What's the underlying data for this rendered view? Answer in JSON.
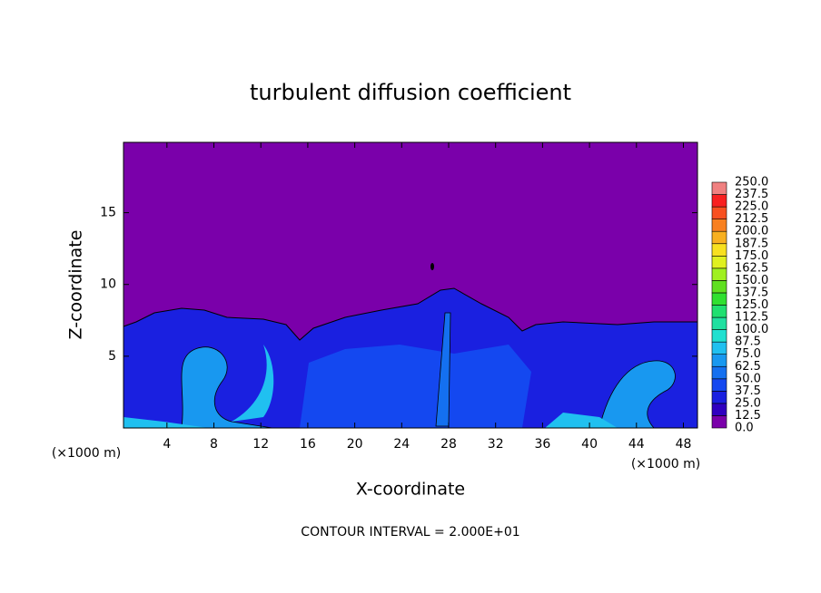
{
  "chart_data": {
    "type": "contour",
    "title": "turbulent diffusion coefficient",
    "x_label": "X-coordinate",
    "y_label": "Z-coordinate",
    "x_unit_label": "(×1000 m)",
    "y_unit_label": "(×1000 m)",
    "annotation": "CONTOUR INTERVAL = 2.000E+01",
    "xlim": [
      0.3,
      49.2
    ],
    "ylim": [
      0,
      19.9
    ],
    "xticks": [
      4,
      8,
      12,
      16,
      20,
      24,
      28,
      32,
      36,
      40,
      44,
      48
    ],
    "yticks": [
      5,
      10,
      15
    ],
    "background_color": "#7a00aa",
    "colorbar": {
      "levels": [
        {
          "value": 0,
          "label": "0.0"
        },
        12.5,
        {
          "value": 25,
          "label": "25.0"
        },
        37.5,
        {
          "value": 50,
          "label": "50.0"
        },
        62.5,
        {
          "value": 75,
          "label": "75.0"
        },
        87.5,
        {
          "value": 100,
          "label": "100.0"
        },
        112.5,
        {
          "value": 125,
          "label": "125.0"
        },
        137.5,
        {
          "value": 150,
          "label": "150.0"
        },
        162.5,
        {
          "value": 175,
          "label": "175.0"
        },
        187.5,
        {
          "value": 200,
          "label": "200.0"
        },
        212.5,
        {
          "value": 225,
          "label": "225.0"
        },
        237.5,
        {
          "value": 250,
          "label": "250.0"
        }
      ],
      "colors": [
        "#7a00aa",
        "#3000c0",
        "#1a20e0",
        "#1448f0",
        "#1470f0",
        "#1898f0",
        "#20c0f0",
        "#20e0d0",
        "#20e0a0",
        "#20e070",
        "#30e030",
        "#60e020",
        "#a0f020",
        "#e0f020",
        "#f8e020",
        "#f8b020",
        "#f88020",
        "#f85020",
        "#f82020",
        "#f08080"
      ]
    }
  }
}
